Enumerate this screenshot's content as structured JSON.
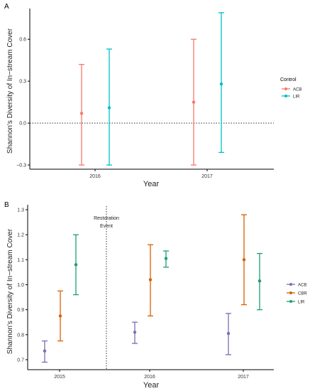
{
  "chart_data": [
    {
      "panel": "A",
      "type": "errorbar",
      "xlabel": "Year",
      "ylabel": "Shannon's Diversity of In−stream Cover",
      "categories": [
        "2016",
        "2017"
      ],
      "ylim": [
        -0.33,
        0.82
      ],
      "y_ticks": [
        "−0.3",
        "0.0",
        "0.3",
        "0.6"
      ],
      "y_tick_values": [
        -0.3,
        0.0,
        0.3,
        0.6
      ],
      "reference_line": {
        "y": 0,
        "style": "dotted"
      },
      "grid": false,
      "legend": {
        "title": "Control",
        "position": "right"
      },
      "series": [
        {
          "name": "ACB",
          "color": "#f8766d",
          "points": [
            {
              "x": "2016",
              "y": 0.07,
              "low": -0.3,
              "high": 0.42
            },
            {
              "x": "2017",
              "y": 0.15,
              "low": -0.3,
              "high": 0.6
            }
          ]
        },
        {
          "name": "LIR",
          "color": "#00bfc4",
          "points": [
            {
              "x": "2016",
              "y": 0.11,
              "low": -0.3,
              "high": 0.53
            },
            {
              "x": "2017",
              "y": 0.28,
              "low": -0.21,
              "high": 0.79
            }
          ]
        }
      ]
    },
    {
      "panel": "B",
      "type": "errorbar",
      "xlabel": "Year",
      "ylabel": "Shannon's Diversity of In−stream Cover",
      "categories": [
        "2015",
        "2016",
        "2017"
      ],
      "ylim": [
        0.66,
        1.32
      ],
      "y_ticks": [
        "0.7",
        "0.8",
        "0.9",
        "1.0",
        "1.1",
        "1.2",
        "1.3"
      ],
      "y_tick_values": [
        0.7,
        0.8,
        0.9,
        1.0,
        1.1,
        1.2,
        1.3
      ],
      "grid": false,
      "event_line": {
        "between": [
          "2015",
          "2016"
        ],
        "label": [
          "Restoration",
          "Event"
        ],
        "style": "dotted"
      },
      "legend": {
        "title": "",
        "position": "right"
      },
      "series": [
        {
          "name": "ACB",
          "color": "#7570b3",
          "points": [
            {
              "x": "2015",
              "y": 0.735,
              "low": 0.69,
              "high": 0.775
            },
            {
              "x": "2016",
              "y": 0.81,
              "low": 0.765,
              "high": 0.85
            },
            {
              "x": "2017",
              "y": 0.805,
              "low": 0.72,
              "high": 0.885
            }
          ]
        },
        {
          "name": "CBR",
          "color": "#d95f02",
          "points": [
            {
              "x": "2015",
              "y": 0.875,
              "low": 0.775,
              "high": 0.975
            },
            {
              "x": "2016",
              "y": 1.02,
              "low": 0.875,
              "high": 1.16
            },
            {
              "x": "2017",
              "y": 1.1,
              "low": 0.92,
              "high": 1.28
            }
          ]
        },
        {
          "name": "LIR",
          "color": "#1b9e77",
          "points": [
            {
              "x": "2015",
              "y": 1.08,
              "low": 0.96,
              "high": 1.2
            },
            {
              "x": "2016",
              "y": 1.105,
              "low": 1.07,
              "high": 1.135
            },
            {
              "x": "2017",
              "y": 1.015,
              "low": 0.9,
              "high": 1.125
            }
          ]
        }
      ]
    }
  ]
}
